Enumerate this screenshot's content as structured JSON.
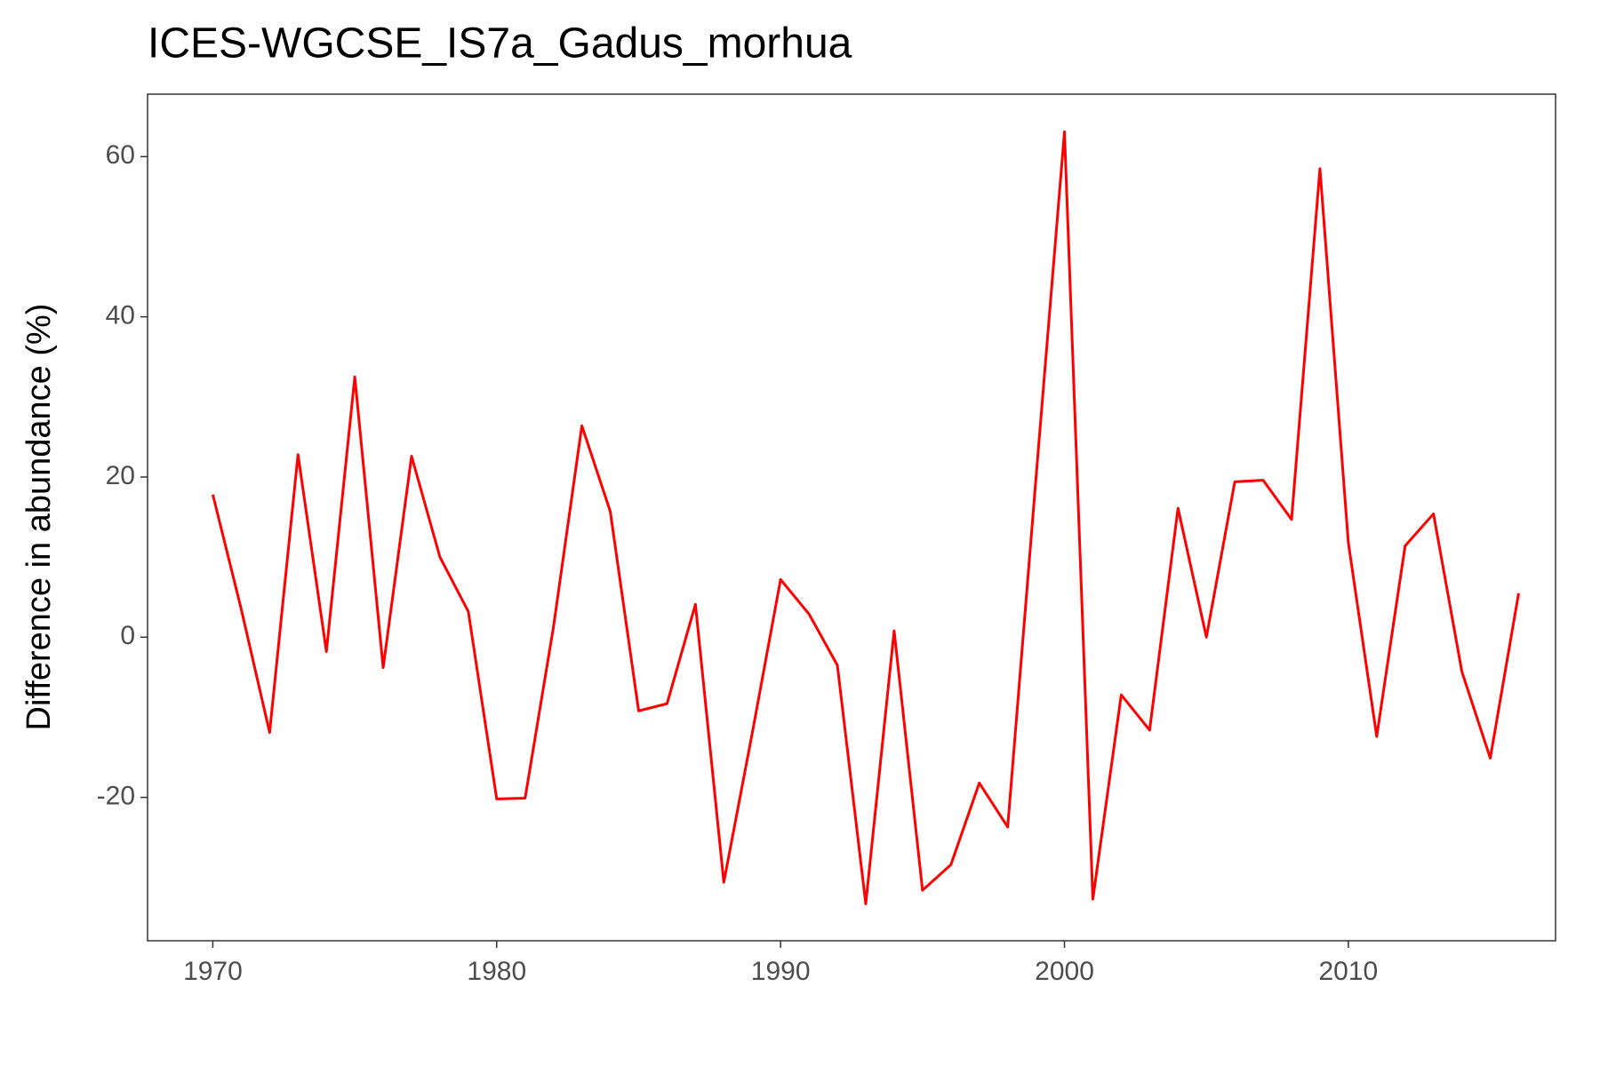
{
  "chart_data": {
    "type": "line",
    "title": "ICES-WGCSE_IS7a_Gadus_morhua",
    "y_label": "Difference in abundance (%)",
    "x": [
      1970,
      1971,
      1972,
      1973,
      1974,
      1975,
      1976,
      1977,
      1978,
      1979,
      1980,
      1981,
      1982,
      1983,
      1984,
      1985,
      1986,
      1987,
      1988,
      1989,
      1990,
      1991,
      1992,
      1993,
      1994,
      1995,
      1996,
      1997,
      1998,
      1999,
      2000,
      2001,
      2002,
      2003,
      2004,
      2005,
      2006,
      2007,
      2008,
      2009,
      2010,
      2011,
      2012,
      2013,
      2014,
      2015,
      2016
    ],
    "series": [
      {
        "name": "difference",
        "color": "#ff0000",
        "values": [
          17.8,
          3.5,
          -11.9,
          22.8,
          -1.8,
          32.5,
          -3.8,
          22.6,
          10.0,
          3.2,
          -20.2,
          -20.1,
          1.3,
          26.4,
          15.7,
          -9.2,
          -8.3,
          4.1,
          -30.6,
          -12.0,
          7.2,
          2.9,
          -3.5,
          -33.3,
          0.8,
          -31.6,
          -28.4,
          -18.2,
          -23.7,
          20.0,
          63.1,
          -32.7,
          -7.2,
          -11.6,
          16.1,
          0.0,
          19.4,
          19.6,
          14.7,
          58.5,
          11.8,
          -12.4,
          11.4,
          15.4,
          -4.3,
          -15.1,
          5.5
        ]
      }
    ],
    "xlim": [
      1967.7,
      2017.3
    ],
    "xticks": [
      1970,
      1980,
      1990,
      2000,
      2010
    ],
    "ylim": [
      -37.9,
      67.8
    ],
    "yticks": [
      -20,
      0,
      20,
      40,
      60
    ],
    "grid": false
  }
}
